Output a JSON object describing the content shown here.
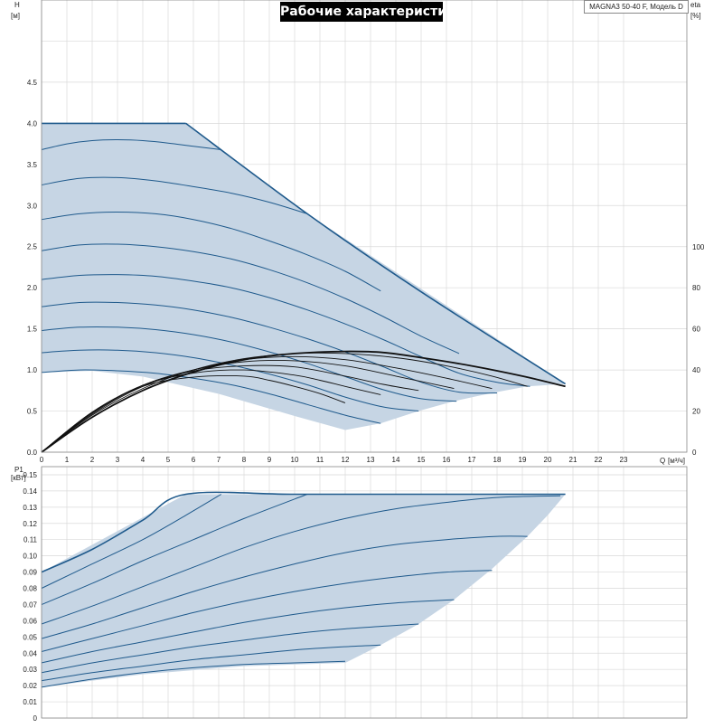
{
  "title": "Рабочие характеристики",
  "model": "MAGNA3 50-40 F, Модель D",
  "colors": {
    "envelope_fill": "#c6d5e4",
    "curve_line": "#1f5a8c",
    "efficiency_line": "#111111",
    "grid": "#d9d9d9"
  },
  "chart_data": [
    {
      "type": "line",
      "name": "head",
      "ylabel": "H",
      "yunit": "[м]",
      "y2label": "eta",
      "y2unit": "[%]",
      "xlabel": "Q",
      "xunit": "[м³/ч]",
      "xlim": [
        0,
        25.5
      ],
      "ylim": [
        0,
        5.5
      ],
      "y2lim": [
        0,
        100
      ],
      "xticks": [
        0,
        1,
        2,
        3,
        4,
        5,
        6,
        7,
        8,
        9,
        10,
        11,
        12,
        13,
        14,
        15,
        16,
        17,
        18,
        19,
        20,
        21,
        22,
        23
      ],
      "yticks": [
        0.0,
        0.5,
        1.0,
        1.5,
        2.0,
        2.5,
        3.0,
        3.5,
        4.0,
        4.5
      ],
      "ytick_labels": [
        "0.0",
        "0.5",
        "1.0",
        "1.5",
        "2.0",
        "2.5",
        "3.0",
        "3.5",
        "4.0",
        "4.5"
      ],
      "y2ticks": [
        0,
        20,
        40,
        60,
        80,
        100
      ],
      "envelope": [
        [
          0,
          4.0
        ],
        [
          5.7,
          4.0
        ],
        [
          10.5,
          2.9
        ],
        [
          20.7,
          0.83
        ],
        [
          19.2,
          0.8
        ],
        [
          17.8,
          0.72
        ],
        [
          16.3,
          0.62
        ],
        [
          14.9,
          0.5
        ],
        [
          13.4,
          0.35
        ],
        [
          12.0,
          0.27
        ],
        [
          10,
          0.44
        ],
        [
          7,
          0.71
        ],
        [
          4,
          0.92
        ],
        [
          2,
          0.99
        ],
        [
          0,
          0.97
        ]
      ],
      "series": [
        {
          "x": [
            0,
            1.5,
            3,
            4.5,
            5.7
          ],
          "y": [
            4.0,
            4.0,
            4.0,
            4.0,
            4.0
          ]
        },
        {
          "x": [
            0,
            1,
            2,
            3,
            4,
            5,
            6,
            7.1
          ],
          "y": [
            3.68,
            3.75,
            3.79,
            3.8,
            3.79,
            3.76,
            3.72,
            3.68
          ]
        },
        {
          "x": [
            0,
            1.5,
            3,
            4.5,
            6,
            7.5,
            9,
            10.5
          ],
          "y": [
            3.25,
            3.33,
            3.34,
            3.3,
            3.23,
            3.15,
            3.04,
            2.9
          ]
        },
        {
          "x": [
            0,
            1.5,
            3,
            4.5,
            6,
            7.5,
            9,
            10.5,
            12,
            13.4
          ],
          "y": [
            2.83,
            2.9,
            2.92,
            2.9,
            2.83,
            2.72,
            2.57,
            2.4,
            2.2,
            1.96
          ]
        },
        {
          "x": [
            0,
            1.5,
            3,
            4.5,
            6,
            7.5,
            9,
            10.5,
            12,
            13.5,
            15,
            16.5
          ],
          "y": [
            2.45,
            2.52,
            2.53,
            2.5,
            2.44,
            2.35,
            2.22,
            2.06,
            1.87,
            1.65,
            1.41,
            1.2
          ]
        },
        {
          "x": [
            0,
            1.5,
            3,
            4.5,
            6,
            7.5,
            9,
            10.5,
            12,
            13.5,
            15,
            16.5,
            18,
            19.3
          ],
          "y": [
            2.1,
            2.15,
            2.16,
            2.14,
            2.08,
            2.0,
            1.88,
            1.73,
            1.56,
            1.37,
            1.16,
            0.96,
            0.85,
            0.8
          ]
        },
        {
          "x": [
            0,
            1.5,
            3,
            4.5,
            6,
            7.5,
            9,
            10.5,
            12,
            13.5,
            15,
            16.5,
            18
          ],
          "y": [
            1.77,
            1.82,
            1.82,
            1.79,
            1.73,
            1.64,
            1.52,
            1.38,
            1.22,
            1.04,
            0.85,
            0.73,
            0.72
          ]
        },
        {
          "x": [
            0,
            1.5,
            3,
            4.5,
            6,
            7.5,
            9,
            10.5,
            12,
            13.5,
            15,
            16.4
          ],
          "y": [
            1.48,
            1.52,
            1.52,
            1.49,
            1.43,
            1.34,
            1.22,
            1.08,
            0.92,
            0.76,
            0.65,
            0.62
          ]
        },
        {
          "x": [
            0,
            1.5,
            3,
            4.5,
            6,
            7.5,
            9,
            10.5,
            12,
            13.5,
            14.9
          ],
          "y": [
            1.21,
            1.24,
            1.24,
            1.21,
            1.15,
            1.06,
            0.95,
            0.82,
            0.67,
            0.55,
            0.5
          ]
        },
        {
          "x": [
            0,
            1.5,
            3,
            4.5,
            6,
            7.5,
            9,
            10.5,
            12,
            13.4
          ],
          "y": [
            0.97,
            1.0,
            0.99,
            0.96,
            0.9,
            0.82,
            0.71,
            0.58,
            0.45,
            0.35
          ]
        }
      ],
      "efficiency_series": [
        {
          "x": [
            0,
            2,
            4,
            6,
            8,
            10,
            12,
            13.5,
            15,
            17,
            19,
            20.7
          ],
          "y": [
            0,
            17,
            30,
            39,
            45,
            48,
            49,
            48.5,
            46,
            42,
            37,
            32
          ]
        },
        {
          "x": [
            0,
            2,
            4,
            6,
            8,
            10,
            12,
            14,
            16,
            17.8,
            19.2
          ],
          "y": [
            0,
            18,
            31,
            40,
            45.5,
            48,
            48,
            46,
            42,
            37,
            32
          ]
        },
        {
          "x": [
            0,
            2,
            4,
            6,
            8,
            10,
            12,
            14,
            16,
            17.8
          ],
          "y": [
            0,
            18.5,
            32,
            40,
            45,
            46.5,
            45,
            41,
            36,
            31
          ]
        },
        {
          "x": [
            0,
            2,
            4,
            6,
            8,
            10,
            12,
            14,
            16.3
          ],
          "y": [
            0,
            19,
            32.5,
            40,
            44,
            44.5,
            42,
            37,
            31
          ]
        },
        {
          "x": [
            0,
            2,
            4,
            6,
            8,
            10,
            12,
            13.5,
            14.9
          ],
          "y": [
            0,
            19,
            32.5,
            39.5,
            42,
            41.5,
            37,
            33,
            30
          ]
        },
        {
          "x": [
            0,
            2,
            4,
            6,
            8,
            10,
            11,
            12,
            13.4
          ],
          "y": [
            0,
            19.5,
            32.5,
            38.5,
            40,
            37.5,
            35,
            32,
            28
          ]
        },
        {
          "x": [
            0,
            2,
            4,
            6,
            8,
            9,
            10,
            11,
            12
          ],
          "y": [
            0,
            19.5,
            32,
            36.5,
            37,
            35,
            32,
            28.5,
            24
          ]
        }
      ]
    },
    {
      "type": "line",
      "name": "power",
      "ylabel": "P1",
      "yunit": "[кВт]",
      "xlim": [
        0,
        25.5
      ],
      "ylim": [
        0,
        0.155
      ],
      "yticks": [
        0,
        0.01,
        0.02,
        0.03,
        0.04,
        0.05,
        0.06,
        0.07,
        0.08,
        0.09,
        0.1,
        0.11,
        0.12,
        0.13,
        0.14,
        0.15
      ],
      "ytick_labels": [
        "0",
        "0.01",
        "0.02",
        "0.03",
        "0.04",
        "0.05",
        "0.06",
        "0.07",
        "0.08",
        "0.09",
        "0.10",
        "0.11",
        "0.12",
        "0.13",
        "0.14",
        "0.15"
      ],
      "envelope": [
        [
          0,
          0.09
        ],
        [
          5.7,
          0.138
        ],
        [
          20.7,
          0.138
        ],
        [
          20,
          0.125
        ],
        [
          19.2,
          0.112
        ],
        [
          17.8,
          0.092
        ],
        [
          16.3,
          0.073
        ],
        [
          14.9,
          0.058
        ],
        [
          13.4,
          0.045
        ],
        [
          12.0,
          0.034
        ],
        [
          8,
          0.032
        ],
        [
          4,
          0.027
        ],
        [
          0,
          0.019
        ]
      ],
      "series": [
        {
          "x": [
            0,
            2,
            4,
            5.7,
            10,
            15,
            20.7
          ],
          "y": [
            0.09,
            0.104,
            0.122,
            0.138,
            0.138,
            0.138,
            0.138
          ]
        },
        {
          "x": [
            0,
            2,
            4,
            5.7,
            7.1
          ],
          "y": [
            0.08,
            0.095,
            0.11,
            0.125,
            0.138
          ]
        },
        {
          "x": [
            0,
            2,
            4,
            6,
            8,
            10.5
          ],
          "y": [
            0.07,
            0.083,
            0.097,
            0.11,
            0.123,
            0.138
          ]
        },
        {
          "x": [
            0,
            2,
            4,
            6,
            8,
            10,
            12,
            14,
            16,
            18,
            20.5
          ],
          "y": [
            0.058,
            0.069,
            0.081,
            0.093,
            0.105,
            0.115,
            0.123,
            0.129,
            0.133,
            0.136,
            0.137
          ]
        },
        {
          "x": [
            0,
            2,
            4,
            6,
            8,
            10,
            12,
            14,
            16,
            18,
            19.2
          ],
          "y": [
            0.049,
            0.058,
            0.068,
            0.078,
            0.087,
            0.095,
            0.102,
            0.107,
            0.11,
            0.112,
            0.112
          ]
        },
        {
          "x": [
            0,
            2,
            4,
            6,
            8,
            10,
            12,
            14,
            16,
            17.8
          ],
          "y": [
            0.041,
            0.049,
            0.057,
            0.065,
            0.072,
            0.078,
            0.083,
            0.087,
            0.09,
            0.091
          ]
        },
        {
          "x": [
            0,
            2,
            4,
            6,
            8,
            10,
            12,
            14,
            16.3
          ],
          "y": [
            0.034,
            0.041,
            0.047,
            0.053,
            0.059,
            0.064,
            0.068,
            0.071,
            0.073
          ]
        },
        {
          "x": [
            0,
            2,
            4,
            6,
            8,
            10,
            12,
            14.9
          ],
          "y": [
            0.028,
            0.034,
            0.039,
            0.044,
            0.048,
            0.052,
            0.055,
            0.058
          ]
        },
        {
          "x": [
            0,
            2,
            4,
            6,
            8,
            10,
            12,
            13.4
          ],
          "y": [
            0.023,
            0.028,
            0.032,
            0.036,
            0.039,
            0.042,
            0.044,
            0.045
          ]
        },
        {
          "x": [
            0,
            2,
            4,
            6,
            8,
            10,
            12
          ],
          "y": [
            0.019,
            0.024,
            0.028,
            0.031,
            0.033,
            0.034,
            0.035
          ]
        }
      ]
    }
  ]
}
